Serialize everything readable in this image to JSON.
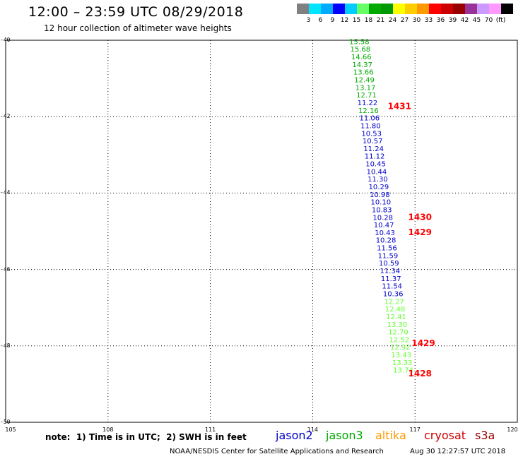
{
  "header": {
    "title": "12:00 – 23:59 UTC 08/29/2018",
    "subtitle": "12 hour collection of altimeter wave heights"
  },
  "legend": {
    "colors": [
      "#808080",
      "#00e5ff",
      "#00aaff",
      "#0000ff",
      "#00ccff",
      "#66ff66",
      "#00aa00",
      "#009900",
      "#ffff00",
      "#ffcc00",
      "#ff9900",
      "#ff0000",
      "#cc0000",
      "#990000",
      "#993399",
      "#cc99ff",
      "#ff99ff",
      "#000000"
    ],
    "labels": [
      "3",
      "6",
      "9",
      "12",
      "15",
      "18",
      "21",
      "24",
      "27",
      "30",
      "33",
      "36",
      "39",
      "42",
      "45",
      "70",
      "(ft)"
    ]
  },
  "axes": {
    "y_ticks": [
      "-40",
      "-42",
      "-44",
      "-46",
      "-48",
      "-50"
    ],
    "x_ticks": [
      "105",
      "108",
      "111",
      "114",
      "117",
      "120"
    ]
  },
  "note": "note:  1) Time is in UTC;  2) SWH is in feet",
  "satellites": [
    {
      "name": "jason2",
      "color": "#0000cc"
    },
    {
      "name": "jason3",
      "color": "#00aa00"
    },
    {
      "name": "altika",
      "color": "#ff9900"
    },
    {
      "name": "cryosat",
      "color": "#cc0000"
    },
    {
      "name": "s3a",
      "color": "#990000"
    }
  ],
  "footer": "NOAA/NESDIS Center for Satellite Applications and Research",
  "timestamp": "Aug 30 12:27:57 UTC 2018",
  "chart_data": {
    "type": "scatter",
    "title": "12:00 – 23:59 UTC 08/29/2018",
    "xlim": [
      105,
      120
    ],
    "ylim": [
      -50,
      -40
    ],
    "grid": true,
    "series": [
      {
        "name": "jason3",
        "color": "#00aa00",
        "points": [
          {
            "lon": 115.07,
            "lat": -40.1,
            "v": "15.58"
          },
          {
            "lon": 115.1,
            "lat": -40.3,
            "v": "15.68"
          },
          {
            "lon": 115.13,
            "lat": -40.5,
            "v": "14.66"
          },
          {
            "lon": 115.16,
            "lat": -40.7,
            "v": "14.37"
          },
          {
            "lon": 115.19,
            "lat": -40.9,
            "v": "13.66"
          },
          {
            "lon": 115.22,
            "lat": -41.1,
            "v": "12.49"
          },
          {
            "lon": 115.25,
            "lat": -41.3,
            "v": "13.17"
          },
          {
            "lon": 115.28,
            "lat": -41.5,
            "v": "12.71"
          },
          {
            "lon": 115.34,
            "lat": -41.9,
            "v": "12.16"
          }
        ]
      },
      {
        "name": "jason2",
        "color": "#0000cc",
        "points": [
          {
            "lon": 115.31,
            "lat": -41.7,
            "v": "11.22"
          },
          {
            "lon": 115.37,
            "lat": -42.1,
            "v": "11.06"
          },
          {
            "lon": 115.4,
            "lat": -42.3,
            "v": "11.80"
          },
          {
            "lon": 115.43,
            "lat": -42.5,
            "v": "10.53"
          },
          {
            "lon": 115.46,
            "lat": -42.7,
            "v": "10.57"
          },
          {
            "lon": 115.49,
            "lat": -42.9,
            "v": "11.24"
          },
          {
            "lon": 115.52,
            "lat": -43.1,
            "v": "11.12"
          },
          {
            "lon": 115.55,
            "lat": -43.3,
            "v": "10.45"
          },
          {
            "lon": 115.58,
            "lat": -43.5,
            "v": "10.44"
          },
          {
            "lon": 115.61,
            "lat": -43.7,
            "v": "11.30"
          },
          {
            "lon": 115.64,
            "lat": -43.9,
            "v": "10.29"
          },
          {
            "lon": 115.67,
            "lat": -44.1,
            "v": "10.98"
          },
          {
            "lon": 115.7,
            "lat": -44.3,
            "v": "10.10"
          },
          {
            "lon": 115.73,
            "lat": -44.5,
            "v": "10.83"
          },
          {
            "lon": 115.76,
            "lat": -44.7,
            "v": "10.28"
          },
          {
            "lon": 115.79,
            "lat": -44.9,
            "v": "10.47"
          },
          {
            "lon": 115.82,
            "lat": -45.1,
            "v": "10.43"
          },
          {
            "lon": 115.85,
            "lat": -45.3,
            "v": "10.28"
          },
          {
            "lon": 115.88,
            "lat": -45.5,
            "v": "11.56"
          },
          {
            "lon": 115.91,
            "lat": -45.7,
            "v": "11.59"
          },
          {
            "lon": 115.94,
            "lat": -45.9,
            "v": "10.59"
          },
          {
            "lon": 115.97,
            "lat": -46.1,
            "v": "11.34"
          },
          {
            "lon": 116.0,
            "lat": -46.3,
            "v": "11.37"
          },
          {
            "lon": 116.03,
            "lat": -46.5,
            "v": "11.54"
          },
          {
            "lon": 116.06,
            "lat": -46.7,
            "v": "10.36"
          }
        ]
      },
      {
        "name": "jason3",
        "color": "#66ff33",
        "points": [
          {
            "lon": 116.09,
            "lat": -46.9,
            "v": "12.27"
          },
          {
            "lon": 116.12,
            "lat": -47.1,
            "v": "12.48"
          },
          {
            "lon": 116.15,
            "lat": -47.3,
            "v": "12.41"
          },
          {
            "lon": 116.18,
            "lat": -47.5,
            "v": "13.30"
          },
          {
            "lon": 116.21,
            "lat": -47.7,
            "v": "12.70"
          },
          {
            "lon": 116.24,
            "lat": -47.9,
            "v": "12.52"
          },
          {
            "lon": 116.27,
            "lat": -48.1,
            "v": "12.92"
          },
          {
            "lon": 116.3,
            "lat": -48.3,
            "v": "13.43"
          },
          {
            "lon": 116.33,
            "lat": -48.5,
            "v": "13.33"
          },
          {
            "lon": 116.36,
            "lat": -48.7,
            "v": "13.74"
          }
        ]
      }
    ],
    "time_labels": [
      {
        "lon": 116.2,
        "lat": -41.8,
        "v": "1431"
      },
      {
        "lon": 116.8,
        "lat": -44.7,
        "v": "1430"
      },
      {
        "lon": 116.8,
        "lat": -45.1,
        "v": "1429"
      },
      {
        "lon": 116.9,
        "lat": -48.0,
        "v": "1429"
      },
      {
        "lon": 116.8,
        "lat": -48.8,
        "v": "1428"
      }
    ]
  }
}
